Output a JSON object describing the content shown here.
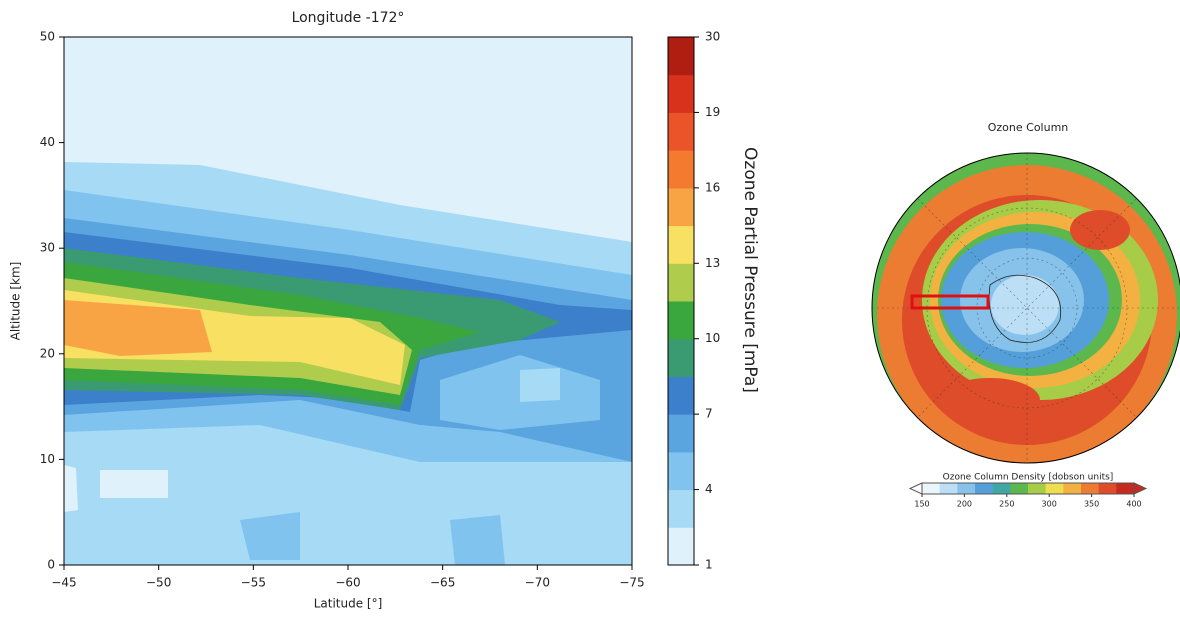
{
  "chart_data": [
    {
      "type": "contour",
      "title": "Longitude -172°",
      "x_label": "Latitude [°]",
      "y_label": "Altitude [km]",
      "xlim": [
        -45,
        -75
      ],
      "xticks": [
        {
          "value": -45,
          "label": "−45"
        },
        {
          "value": -50,
          "label": "−50"
        },
        {
          "value": -55,
          "label": "−55"
        },
        {
          "value": -60,
          "label": "−60"
        },
        {
          "value": -65,
          "label": "−65"
        },
        {
          "value": -70,
          "label": "−70"
        },
        {
          "value": -75,
          "label": "−75"
        }
      ],
      "ylim": [
        0,
        50
      ],
      "yticks": [
        0,
        10,
        20,
        30,
        40,
        50
      ],
      "colorbar_label": "Ozone Partial Pressure [mPa]",
      "colorbar_ticks": [
        1,
        4,
        7,
        10,
        13,
        16,
        19,
        30
      ],
      "colors": [
        "#dff1fa",
        "#a6daf5",
        "#80c3ee",
        "#5aa5e0",
        "#3c80cc",
        "#3a9a72",
        "#3aa63e",
        "#b0cc4c",
        "#f8e062",
        "#f8a444",
        "#f47a30",
        "#ea5428",
        "#d8321c",
        "#b01e12"
      ]
    },
    {
      "type": "map",
      "title": "Ozone Column",
      "colorbar_label": "Ozone Column Density [dobson units]",
      "colorbar_ticks": [
        150,
        200,
        250,
        300,
        350,
        400
      ],
      "colors": [
        "#eaf5fc",
        "#bcdff6",
        "#86c2ea",
        "#549fd9",
        "#3fa7a4",
        "#5cb84c",
        "#a6cc48",
        "#eedf50",
        "#f3b142",
        "#ec7c32",
        "#de4c2a",
        "#c42a1e"
      ]
    }
  ]
}
